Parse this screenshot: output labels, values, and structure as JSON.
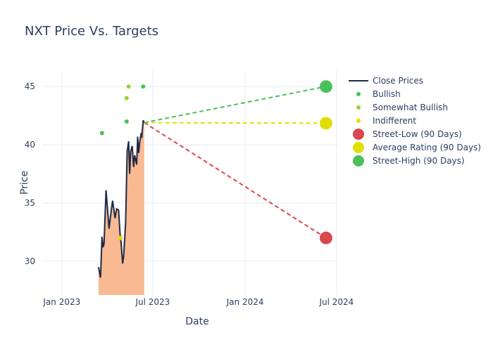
{
  "chart_data": {
    "type": "line",
    "title": "NXT Price Vs. Targets",
    "xlabel": "Date",
    "ylabel": "Price",
    "xlim": [
      "2022-11-23",
      "2024-07-04"
    ],
    "ylim": [
      27.1,
      46.4
    ],
    "grid": true,
    "legend_placement": "right",
    "x_ticks": [
      {
        "date": "2023-01-01",
        "label": "Jan 2023"
      },
      {
        "date": "2023-07-01",
        "label": "Jul 2023"
      },
      {
        "date": "2024-01-01",
        "label": "Jan 2024"
      },
      {
        "date": "2024-07-01",
        "label": "Jul 2024"
      }
    ],
    "y_ticks": [
      30,
      35,
      40,
      45
    ],
    "close_prices": {
      "name": "Close Prices",
      "color": "#1f2a44",
      "fill": "#f9b992",
      "x": [
        "2023-03-15",
        "2023-03-19",
        "2023-03-22",
        "2023-03-24",
        "2023-03-26",
        "2023-03-30",
        "2023-04-05",
        "2023-04-08",
        "2023-04-12",
        "2023-04-17",
        "2023-04-20",
        "2023-04-24",
        "2023-04-27",
        "2023-04-29",
        "2023-05-02",
        "2023-05-04",
        "2023-05-08",
        "2023-05-11",
        "2023-05-14",
        "2023-05-16",
        "2023-05-18",
        "2023-05-21",
        "2023-05-24",
        "2023-05-26",
        "2023-05-30",
        "2023-06-01",
        "2023-06-03",
        "2023-06-05",
        "2023-06-08",
        "2023-06-09",
        "2023-06-12",
        "2023-06-14"
      ],
      "y": [
        29.5,
        28.6,
        32.1,
        31.2,
        31.5,
        36.1,
        32.8,
        33.9,
        35.2,
        33.7,
        34.5,
        34.4,
        32.3,
        31.6,
        29.8,
        30.4,
        33.3,
        39.4,
        40.3,
        37.5,
        39.4,
        39.9,
        38.1,
        39.1,
        38.3,
        40.7,
        39.3,
        40.2,
        41.0,
        40.6,
        42.1,
        41.9
      ]
    },
    "ratings": [
      {
        "name": "Bullish",
        "color": "#4cc05a",
        "points": [
          {
            "x": "2023-03-22",
            "y": 41
          },
          {
            "x": "2023-05-10",
            "y": 42
          },
          {
            "x": "2023-06-12",
            "y": 45
          }
        ]
      },
      {
        "name": "Somewhat Bullish",
        "color": "#9ad22a",
        "points": [
          {
            "x": "2023-05-10",
            "y": 44
          },
          {
            "x": "2023-05-14",
            "y": 45
          }
        ]
      },
      {
        "name": "Indifferent",
        "color": "#e0e000",
        "points": [
          {
            "x": "2023-04-28",
            "y": 32
          }
        ]
      }
    ],
    "targets": {
      "from": {
        "x": "2023-06-14",
        "y": 41.9
      },
      "to_x": "2024-06-10",
      "series": [
        {
          "name": "Street-Low (90 Days)",
          "value": 32,
          "color": "#d9474f"
        },
        {
          "name": "Average Rating (90 Days)",
          "value": 41.85,
          "color": "#e0e000"
        },
        {
          "name": "Street-High (90 Days)",
          "value": 45,
          "color": "#4cc05a"
        }
      ]
    }
  }
}
